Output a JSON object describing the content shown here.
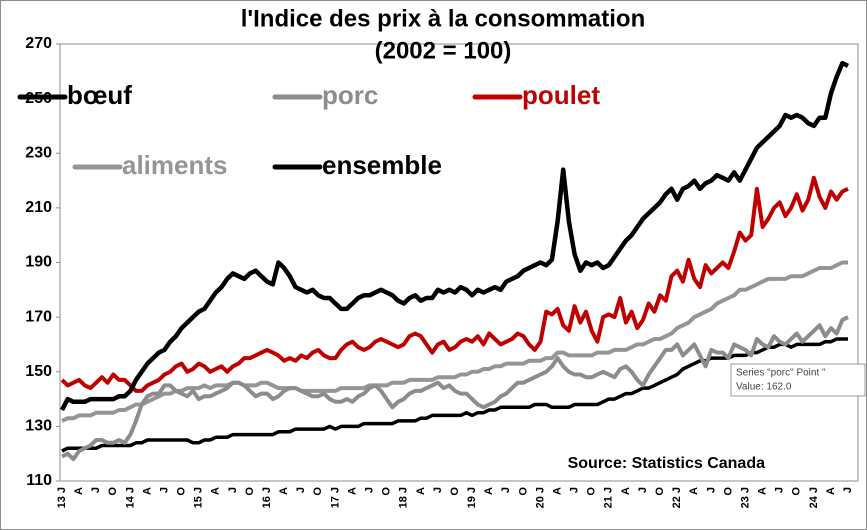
{
  "chart_data": {
    "type": "line",
    "title": "l'Indice des prix à la consommation",
    "subtitle": "(2002 = 100)",
    "annotation": "Source: Statistics Canada",
    "categories": [
      "13 J",
      null,
      null,
      "A",
      null,
      null,
      "J",
      null,
      null,
      "O",
      null,
      null,
      "14 J",
      null,
      null,
      "A",
      null,
      null,
      "J",
      null,
      null,
      "O",
      null,
      null,
      "15 J",
      null,
      null,
      "A",
      null,
      null,
      "J",
      null,
      null,
      "O",
      null,
      null,
      "16 J",
      null,
      null,
      "A",
      null,
      null,
      "J",
      null,
      null,
      "O",
      null,
      null,
      "17 J",
      null,
      null,
      "A",
      null,
      null,
      "J",
      null,
      null,
      "O",
      null,
      null,
      "18 J",
      null,
      null,
      "A",
      null,
      null,
      "J",
      null,
      null,
      "O",
      null,
      null,
      "19 J",
      null,
      null,
      "A",
      null,
      null,
      "J",
      null,
      null,
      "O",
      null,
      null,
      "20 J",
      null,
      null,
      "A",
      null,
      null,
      "J",
      null,
      null,
      "O",
      null,
      null,
      "21 J",
      null,
      null,
      "A",
      null,
      null,
      "J",
      null,
      null,
      "O",
      null,
      null,
      "22 J",
      null,
      null,
      "A",
      null,
      null,
      "J",
      null,
      null,
      "O",
      null,
      null,
      "23 J",
      null,
      null,
      "A",
      null,
      null,
      "J",
      null,
      null,
      "O",
      null,
      null,
      "24 J",
      null,
      null,
      "A",
      null,
      null,
      "J"
    ],
    "ylim": [
      110,
      270
    ],
    "yticks": [
      110,
      130,
      150,
      170,
      190,
      210,
      230,
      250,
      270
    ],
    "grid": false,
    "series": [
      {
        "name": "bœuf",
        "color": "#000000",
        "values": [
          136,
          140,
          139,
          139,
          139,
          140,
          140,
          140,
          140,
          140,
          141,
          141,
          143,
          147,
          150,
          153,
          155,
          157,
          158,
          161,
          163,
          166,
          168,
          170,
          172,
          173,
          176,
          179,
          181,
          184,
          186,
          185,
          184,
          186,
          187,
          185,
          183,
          182,
          190,
          188,
          185,
          181,
          180,
          179,
          180,
          178,
          177,
          177,
          175,
          173,
          173,
          175,
          177,
          178,
          178,
          179,
          180,
          179,
          178,
          176,
          175,
          177,
          178,
          176,
          177,
          177,
          180,
          179,
          180,
          179,
          181,
          180,
          178,
          180,
          179,
          180,
          181,
          180,
          183,
          184,
          185,
          187,
          188,
          189,
          190,
          189,
          191,
          205,
          224,
          205,
          193,
          187,
          190,
          189,
          190,
          188,
          189,
          192,
          195,
          198,
          200,
          203,
          206,
          208,
          210,
          212,
          215,
          217,
          213,
          217,
          218,
          220,
          217,
          219,
          220,
          222,
          221,
          220,
          223,
          220,
          224,
          228,
          232,
          234,
          236,
          238,
          240,
          244,
          243,
          244,
          243,
          241,
          240,
          243,
          243,
          252,
          258,
          263,
          262
        ]
      },
      {
        "name": "porc",
        "color": "#8c8c8c",
        "values": [
          119,
          120,
          118,
          121,
          122,
          123,
          125,
          125,
          124,
          124,
          125,
          124,
          127,
          132,
          138,
          141,
          142,
          142,
          145,
          145,
          143,
          142,
          141,
          143,
          140,
          141,
          141,
          142,
          143,
          144,
          146,
          146,
          145,
          143,
          141,
          142,
          142,
          140,
          141,
          143,
          144,
          144,
          143,
          142,
          141,
          141,
          142,
          140,
          139,
          139,
          140,
          139,
          141,
          142,
          144,
          145,
          143,
          140,
          137,
          139,
          140,
          142,
          143,
          143,
          144,
          145,
          146,
          144,
          145,
          143,
          142,
          142,
          140,
          138,
          137,
          138,
          139,
          141,
          142,
          144,
          146,
          146,
          147,
          148,
          149,
          150,
          152,
          155,
          152,
          150,
          149,
          149,
          148,
          148,
          149,
          150,
          149,
          148,
          151,
          152,
          150,
          147,
          145,
          149,
          152,
          155,
          158,
          158,
          160,
          156,
          158,
          160,
          156,
          152,
          158,
          157,
          157,
          155,
          160,
          159,
          158,
          156,
          162,
          160,
          159,
          163,
          161,
          160,
          162,
          164,
          161,
          163,
          165,
          167,
          163,
          166,
          164,
          169,
          170
        ]
      },
      {
        "name": "poulet",
        "color": "#c00000",
        "values": [
          147,
          145,
          146,
          147,
          145,
          144,
          146,
          148,
          146,
          149,
          147,
          147,
          145,
          143,
          143,
          145,
          146,
          147,
          149,
          150,
          152,
          153,
          150,
          151,
          153,
          152,
          150,
          151,
          152,
          150,
          152,
          153,
          155,
          155,
          156,
          157,
          158,
          157,
          156,
          154,
          155,
          154,
          156,
          155,
          157,
          158,
          156,
          155,
          155,
          158,
          160,
          161,
          159,
          158,
          159,
          161,
          162,
          161,
          160,
          159,
          160,
          163,
          164,
          163,
          160,
          157,
          160,
          161,
          158,
          159,
          161,
          162,
          161,
          163,
          160,
          164,
          162,
          160,
          161,
          162,
          164,
          163,
          160,
          158,
          161,
          172,
          171,
          173,
          167,
          165,
          174,
          168,
          172,
          165,
          161,
          170,
          171,
          170,
          177,
          168,
          172,
          166,
          169,
          175,
          172,
          178,
          176,
          185,
          187,
          183,
          191,
          184,
          181,
          189,
          186,
          188,
          190,
          188,
          194,
          201,
          198,
          200,
          217,
          203,
          206,
          210,
          212,
          207,
          210,
          215,
          209,
          213,
          221,
          214,
          210,
          216,
          213,
          216,
          217
        ]
      },
      {
        "name": "aliments",
        "color": "#959595",
        "values": [
          132,
          133,
          133,
          134,
          134,
          134,
          135,
          135,
          135,
          135,
          136,
          136,
          137,
          138,
          138,
          139,
          140,
          141,
          142,
          142,
          143,
          143,
          144,
          144,
          144,
          145,
          144,
          145,
          145,
          145,
          146,
          146,
          145,
          145,
          145,
          146,
          146,
          145,
          144,
          144,
          144,
          144,
          143,
          143,
          143,
          143,
          143,
          143,
          143,
          144,
          144,
          144,
          144,
          144,
          145,
          145,
          145,
          145,
          146,
          146,
          146,
          147,
          147,
          147,
          147,
          147,
          148,
          148,
          148,
          148,
          149,
          149,
          150,
          150,
          151,
          151,
          152,
          152,
          153,
          153,
          153,
          153,
          154,
          154,
          154,
          155,
          155,
          157,
          157,
          156,
          156,
          156,
          156,
          156,
          157,
          157,
          157,
          158,
          158,
          158,
          159,
          160,
          160,
          161,
          162,
          162,
          163,
          164,
          166,
          167,
          168,
          170,
          171,
          172,
          173,
          175,
          176,
          177,
          178,
          180,
          180,
          181,
          182,
          183,
          184,
          184,
          184,
          184,
          185,
          185,
          185,
          186,
          187,
          188,
          188,
          188,
          189,
          190,
          190
        ]
      },
      {
        "name": "ensemble",
        "color": "#000000",
        "values": [
          121,
          122,
          122,
          122,
          122,
          122,
          122,
          123,
          123,
          123,
          123,
          123,
          123,
          124,
          124,
          125,
          125,
          125,
          125,
          125,
          125,
          125,
          125,
          124,
          124,
          125,
          125,
          126,
          126,
          126,
          127,
          127,
          127,
          127,
          127,
          127,
          127,
          127,
          128,
          128,
          128,
          129,
          129,
          129,
          129,
          129,
          129,
          130,
          129,
          130,
          130,
          130,
          130,
          131,
          131,
          131,
          131,
          131,
          131,
          132,
          132,
          132,
          132,
          133,
          133,
          134,
          134,
          134,
          134,
          134,
          134,
          135,
          134,
          135,
          135,
          136,
          136,
          137,
          137,
          137,
          137,
          137,
          137,
          138,
          138,
          138,
          137,
          137,
          137,
          137,
          138,
          138,
          138,
          138,
          138,
          139,
          140,
          140,
          141,
          142,
          142,
          143,
          144,
          144,
          145,
          146,
          147,
          148,
          149,
          151,
          152,
          153,
          154,
          154,
          155,
          155,
          155,
          155,
          156,
          156,
          156,
          157,
          157,
          158,
          159,
          159,
          160,
          160,
          159,
          160,
          160,
          160,
          160,
          160,
          161,
          161,
          162,
          162,
          162
        ]
      }
    ]
  },
  "tooltip": {
    "lines": [
      "Series \"porc\" Point \"",
      "Value: 162.0"
    ]
  }
}
